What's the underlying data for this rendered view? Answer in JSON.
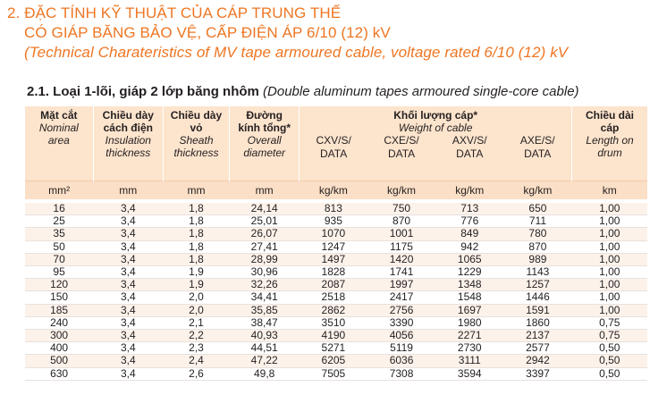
{
  "heading": {
    "line1": "2. ĐẶC TÍNH KỸ THUẬT CỦA CÁP TRUNG THẾ",
    "line2": "CÓ GIÁP BĂNG BẢO VỆ, CẤP ĐIỆN ÁP 6/10 (12) kV",
    "line3": "(Technical Charateristics of MV tape armoured cable, voltage rated 6/10 (12) kV"
  },
  "subheading": {
    "vi": "2.1. Loại 1-lõi, giáp 2 lớp băng nhôm",
    "en": "(Double aluminum tapes armoured single-core cable)"
  },
  "table": {
    "headers": {
      "nominal_area": {
        "vi": "Mặt cắt",
        "en1": "Nominal",
        "en2": "area"
      },
      "insulation": {
        "vi1": "Chiều dày",
        "vi2": "cách điện",
        "en1": "Insulation",
        "en2": "thickness"
      },
      "sheath": {
        "vi1": "Chiều dày",
        "vi2": "vỏ",
        "en1": "Sheath",
        "en2": "thickness"
      },
      "diameter": {
        "vi1": "Đường",
        "vi2": "kính tổng*",
        "en1": "Overall",
        "en2": "diameter"
      },
      "weight": {
        "vi": "Khối lượng cáp*",
        "en": "Weight of cable"
      },
      "length": {
        "vi1": "Chiều dài",
        "vi2": "cáp",
        "en1": "Length on",
        "en2": "drum"
      },
      "sub": [
        {
          "l1": "CXV/S/",
          "l2": "DATA"
        },
        {
          "l1": "CXE/S/",
          "l2": "DATA"
        },
        {
          "l1": "AXV/S/",
          "l2": "DATA"
        },
        {
          "l1": "AXE/S/",
          "l2": "DATA"
        }
      ]
    },
    "units": [
      "mm²",
      "mm",
      "mm",
      "mm",
      "kg/km",
      "kg/km",
      "kg/km",
      "kg/km",
      "km"
    ],
    "rows": [
      [
        "16",
        "3,4",
        "1,8",
        "24,14",
        "813",
        "750",
        "713",
        "650",
        "1,00"
      ],
      [
        "25",
        "3,4",
        "1,8",
        "25,01",
        "935",
        "870",
        "776",
        "711",
        "1,00"
      ],
      [
        "35",
        "3,4",
        "1,8",
        "26,07",
        "1070",
        "1001",
        "849",
        "780",
        "1,00"
      ],
      [
        "50",
        "3,4",
        "1,8",
        "27,41",
        "1247",
        "1175",
        "942",
        "870",
        "1,00"
      ],
      [
        "70",
        "3,4",
        "1,8",
        "28,99",
        "1497",
        "1420",
        "1065",
        "989",
        "1,00"
      ],
      [
        "95",
        "3,4",
        "1,9",
        "30,96",
        "1828",
        "1741",
        "1229",
        "1143",
        "1,00"
      ],
      [
        "120",
        "3,4",
        "1,9",
        "32,26",
        "2087",
        "1997",
        "1348",
        "1257",
        "1,00"
      ],
      [
        "150",
        "3,4",
        "2,0",
        "34,41",
        "2518",
        "2417",
        "1548",
        "1446",
        "1,00"
      ],
      [
        "185",
        "3,4",
        "2,0",
        "35,85",
        "2862",
        "2756",
        "1697",
        "1591",
        "1,00"
      ],
      [
        "240",
        "3,4",
        "2,1",
        "38,47",
        "3510",
        "3390",
        "1980",
        "1860",
        "0,75"
      ],
      [
        "300",
        "3,4",
        "2,2",
        "40,93",
        "4190",
        "4056",
        "2271",
        "2137",
        "0,75"
      ],
      [
        "400",
        "3,4",
        "2,3",
        "44,51",
        "5271",
        "5119",
        "2730",
        "2577",
        "0,50"
      ],
      [
        "500",
        "3,4",
        "2,4",
        "47,22",
        "6205",
        "6036",
        "3111",
        "2942",
        "0,50"
      ],
      [
        "630",
        "3,4",
        "2,6",
        "49,8",
        "7505",
        "7308",
        "3594",
        "3397",
        "0,50"
      ]
    ]
  },
  "colors": {
    "accent": "#ee7623",
    "header_bg": "#fde4cd",
    "units_bg": "#fbdfc6"
  }
}
